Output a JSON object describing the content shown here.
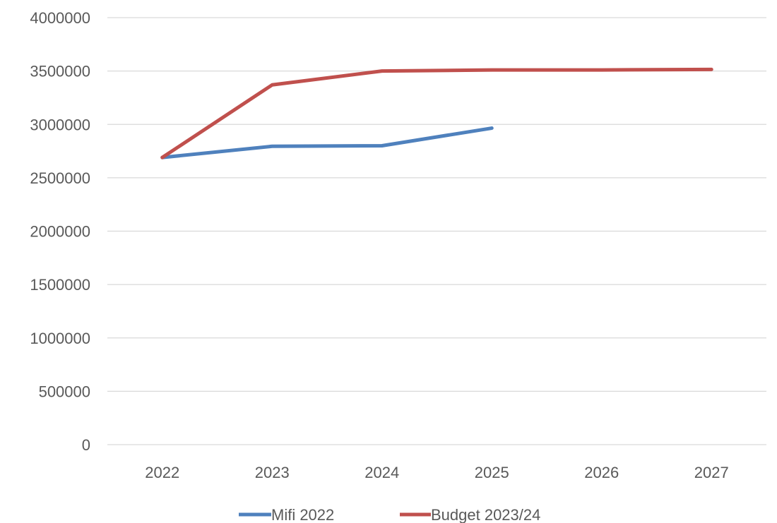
{
  "chart_data": {
    "type": "line",
    "title": "",
    "xlabel": "",
    "ylabel": "",
    "categories": [
      "2022",
      "2023",
      "2024",
      "2025",
      "2026",
      "2027"
    ],
    "ylim": [
      0,
      4000000
    ],
    "y_ticks": [
      0,
      500000,
      1000000,
      1500000,
      2000000,
      2500000,
      3000000,
      3500000,
      4000000
    ],
    "y_tick_labels": [
      "0",
      "500000",
      "1000000",
      "1500000",
      "2000000",
      "2500000",
      "3000000",
      "3500000",
      "4000000"
    ],
    "grid": "horizontal",
    "legend_position": "bottom",
    "series": [
      {
        "name": "Mifi 2022",
        "color": "#4f81bd",
        "values": [
          2690000,
          2795000,
          2800000,
          2965000,
          null,
          null
        ]
      },
      {
        "name": "Budget 2023/24",
        "color": "#c0504d",
        "values": [
          2690000,
          3370000,
          3500000,
          3510000,
          3510000,
          3515000
        ]
      }
    ]
  }
}
